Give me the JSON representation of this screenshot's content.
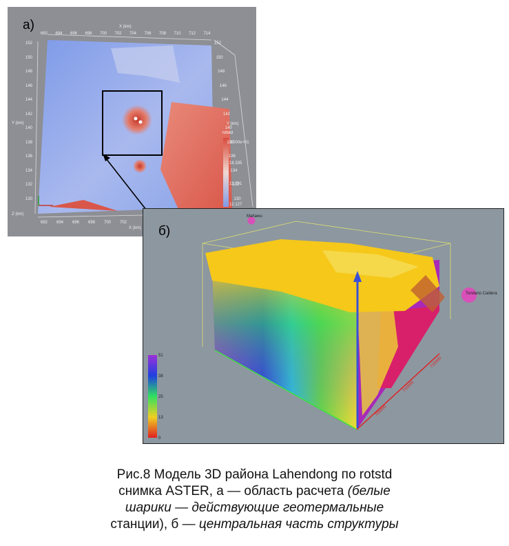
{
  "figure_a": {
    "panel_label": "а)",
    "top_axis_title": "X (km)",
    "x_ticks": [
      "692",
      "694",
      "696",
      "698",
      "700",
      "702",
      "704",
      "706",
      "708",
      "710",
      "712",
      "714"
    ],
    "bottom_axis_title": "X (km)",
    "bottom_x_ticks": [
      "692",
      "694",
      "696",
      "698",
      "700",
      "702"
    ],
    "y_ticks_left": [
      "152",
      "150",
      "148",
      "146",
      "144",
      "142",
      "140",
      "138",
      "136",
      "134",
      "132",
      "130"
    ],
    "y_axis_title": "Y (km)",
    "y_ticks_right": [
      "152",
      "150",
      "148",
      "146",
      "144",
      "142",
      "140",
      "138",
      "136",
      "134",
      "132",
      "130"
    ],
    "y_axis_title_right": "Y (km)",
    "z_axis_title": "Z (km)",
    "colorbar_title": "rotstd",
    "colorbar_ticks": [
      "3.000e+01",
      "18.335",
      "13.791",
      "12.127"
    ]
  },
  "figure_b": {
    "panel_label": "б)",
    "station_1": "Mahawu",
    "station_2": "Tondano Caldera",
    "colorbar_ticks": [
      "51",
      "38",
      "25",
      "13",
      "0"
    ],
    "axis_ticks_right": [
      "705000",
      "710000",
      "715000"
    ]
  },
  "caption": {
    "line1": "Рис.8 Модель 3D района  Lahendong по rotstd",
    "line2_plain": "снимка ASTER, а — область расчета ",
    "line2_italic": "(белые",
    "line3_italic": "шарики — действующие геотермальные",
    "line4_plain": "станции), б — ",
    "line4_italic": "центральная часть структуры"
  }
}
